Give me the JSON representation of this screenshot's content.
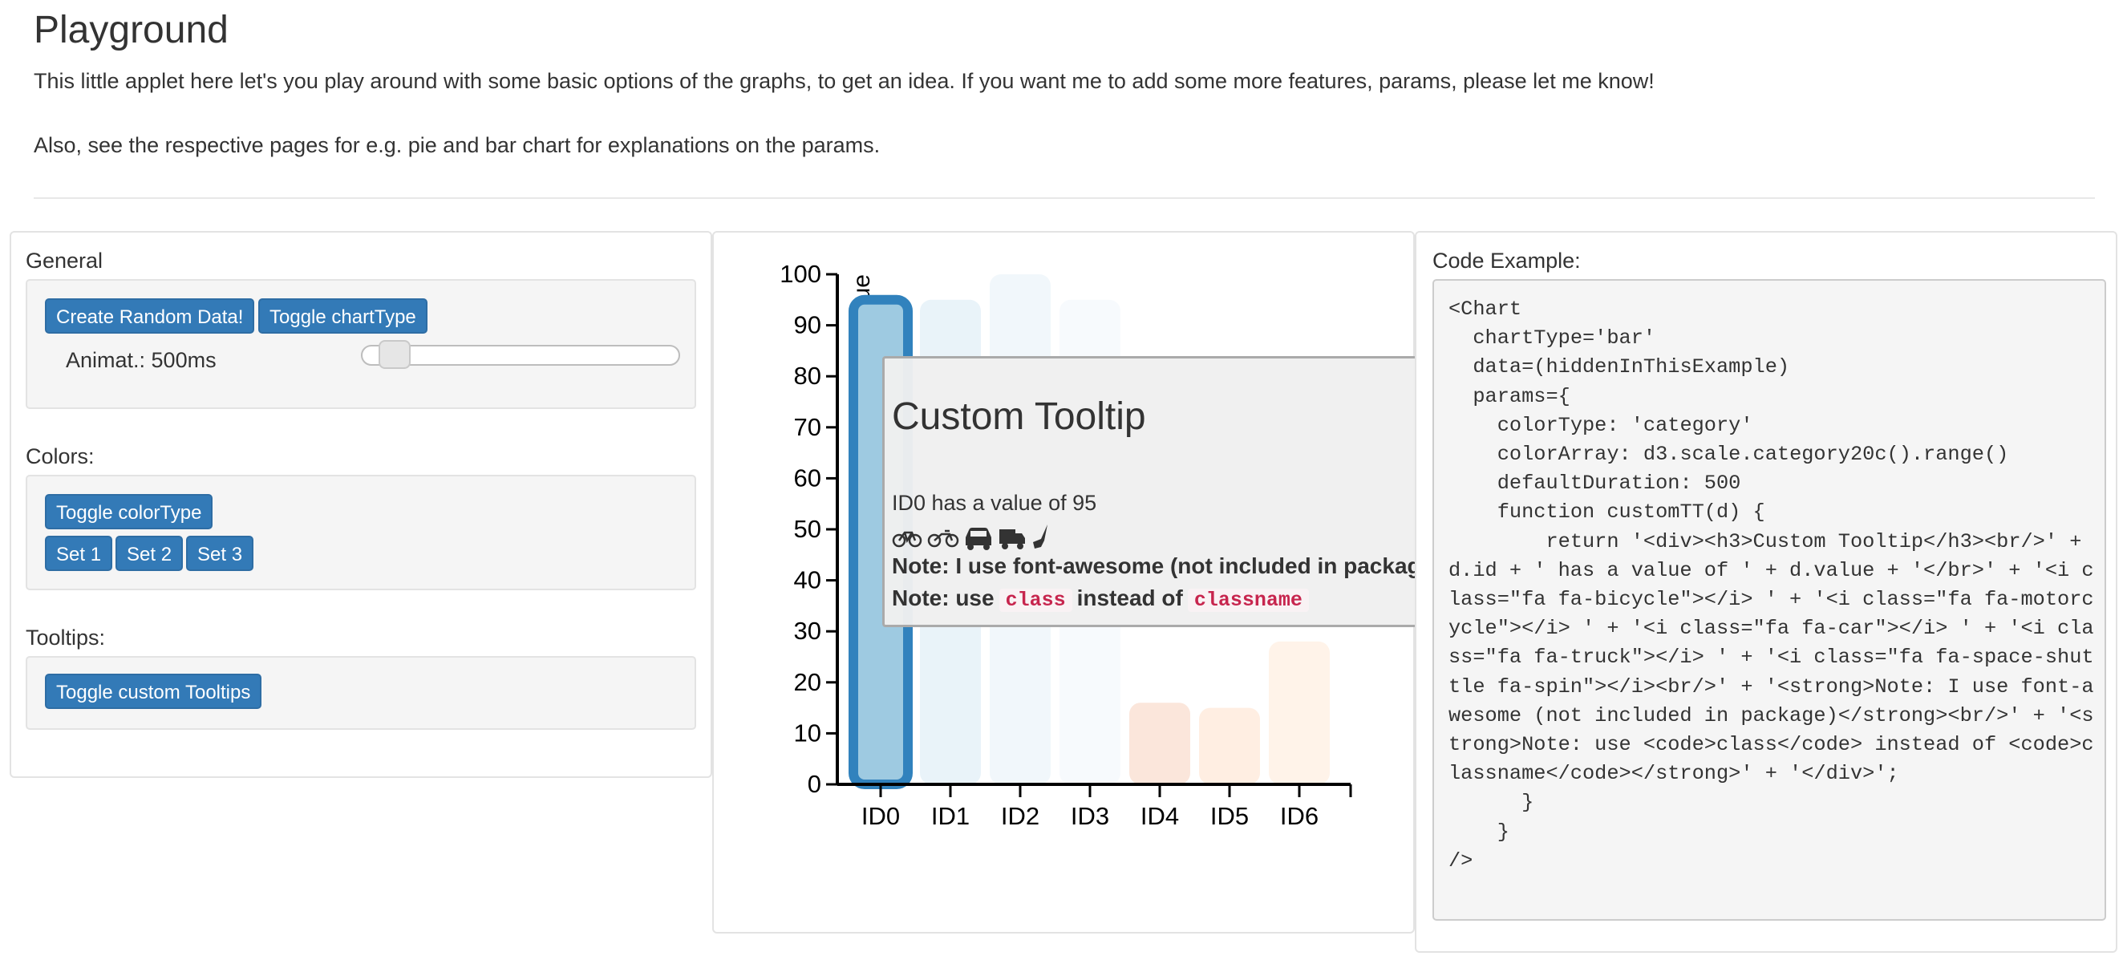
{
  "page": {
    "title": "Playground",
    "intro": "This little applet here let's you play around with some basic options of the graphs, to get an idea. If you want me to add some more features, params, please let me know!",
    "intro2": "Also, see the respective pages for e.g. pie and bar chart for explanations on the params."
  },
  "general": {
    "label": "General",
    "random_button": "Create Random Data!",
    "toggle_charttype_button": "Toggle chartType",
    "animation_label": "Animat.: 500ms",
    "animation_slider_fraction": 0.05
  },
  "colors": {
    "label": "Colors:",
    "toggle_colortype_button": "Toggle colorType",
    "set_buttons": [
      "Set 1",
      "Set 2",
      "Set 3"
    ]
  },
  "tooltips": {
    "label": "Tooltips:",
    "toggle_button": "Toggle custom Tooltips"
  },
  "chart_data": {
    "type": "bar",
    "categories": [
      "ID0",
      "ID1",
      "ID2",
      "ID3",
      "ID4",
      "ID5",
      "ID6"
    ],
    "values": [
      95,
      95,
      100,
      95,
      16,
      15,
      28
    ],
    "colors": [
      "#3182bd",
      "#6baed6",
      "#9ecae1",
      "#c6dbef",
      "#e6550d",
      "#fd8d3c",
      "#fdae6b"
    ],
    "highlighted_index": 0,
    "ylabel": "Value",
    "xlabel": "",
    "ylim": [
      0,
      100
    ],
    "yticks": [
      0,
      10,
      20,
      30,
      40,
      50,
      60,
      70,
      80,
      90,
      100
    ]
  },
  "tooltip": {
    "title": "Custom Tooltip",
    "text": "ID0 has a value of 95",
    "icons": [
      "bicycle-icon",
      "motorcycle-icon",
      "car-icon",
      "truck-icon",
      "space-shuttle-icon"
    ],
    "note1": "Note: I use font-awesome (not included in package)",
    "note2_prefix": "Note: use",
    "note2_code1": "class",
    "note2_middle": "instead of",
    "note2_code2": "classname"
  },
  "code_example": {
    "label": "Code Example:",
    "code": "<Chart\n  chartType='bar'\n  data=(hiddenInThisExample)\n  params={\n    colorType: 'category'\n    colorArray: d3.scale.category20c().range()\n    defaultDuration: 500\n    function customTT(d) {\n        return '<div><h3>Custom Tooltip</h3><br/>' + d.id + ' has a value of ' + d.value + '</br>' + '<i class=\"fa fa-bicycle\"></i> ' + '<i class=\"fa fa-motorcycle\"></i> ' + '<i class=\"fa fa-car\"></i> ' + '<i class=\"fa fa-truck\"></i> ' + '<i class=\"fa fa-space-shuttle fa-spin\"></i><br/>' + '<strong>Note: I use font-awesome (not included in package)</strong><br/>' + '<strong>Note: use <code>class</code> instead of <code>classname</code></strong>' + '</div>';\n      }\n    }\n/>"
  }
}
